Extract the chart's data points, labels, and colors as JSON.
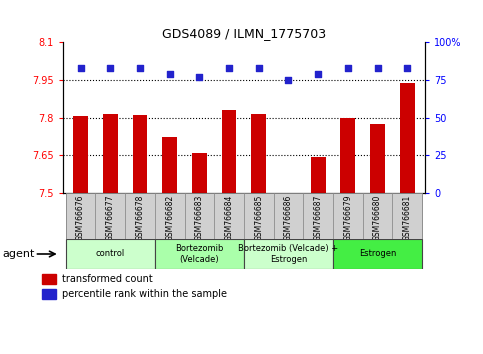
{
  "title": "GDS4089 / ILMN_1775703",
  "samples": [
    "GSM766676",
    "GSM766677",
    "GSM766678",
    "GSM766682",
    "GSM766683",
    "GSM766684",
    "GSM766685",
    "GSM766686",
    "GSM766687",
    "GSM766679",
    "GSM766680",
    "GSM766681"
  ],
  "bar_values": [
    7.805,
    7.815,
    7.81,
    7.725,
    7.66,
    7.83,
    7.815,
    7.5,
    7.645,
    7.8,
    7.775,
    7.94
  ],
  "dot_values": [
    83,
    83,
    83,
    79,
    77,
    83,
    83,
    75,
    79,
    83,
    83,
    83
  ],
  "bar_color": "#cc0000",
  "dot_color": "#2222cc",
  "ylim_left": [
    7.5,
    8.1
  ],
  "ylim_right": [
    0,
    100
  ],
  "yticks_left": [
    7.5,
    7.65,
    7.8,
    7.95,
    8.1
  ],
  "ytick_labels_left": [
    "7.5",
    "7.65",
    "7.8",
    "7.95",
    "8.1"
  ],
  "yticks_right": [
    0,
    25,
    50,
    75,
    100
  ],
  "ytick_labels_right": [
    "0",
    "25",
    "50",
    "75",
    "100%"
  ],
  "hlines": [
    7.65,
    7.8,
    7.95
  ],
  "groups": [
    {
      "label": "control",
      "start": 0,
      "end": 3,
      "color": "#ccffcc"
    },
    {
      "label": "Bortezomib\n(Velcade)",
      "start": 3,
      "end": 6,
      "color": "#aaffaa"
    },
    {
      "label": "Bortezomib (Velcade) +\nEstrogen",
      "start": 6,
      "end": 9,
      "color": "#ccffcc"
    },
    {
      "label": "Estrogen",
      "start": 9,
      "end": 12,
      "color": "#44ee44"
    }
  ],
  "agent_label": "agent",
  "legend_bar_label": "transformed count",
  "legend_dot_label": "percentile rank within the sample",
  "bar_width": 0.5,
  "tick_box_color": "#d0d0d0",
  "tick_box_edge": "#888888"
}
